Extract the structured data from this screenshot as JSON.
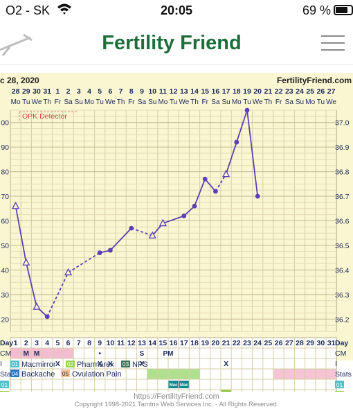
{
  "status_bar": {
    "carrier": "O2 - SK",
    "time": "20:05",
    "battery": "69 %",
    "battery_level": 0.69,
    "wifi_icon": "wifi-icon"
  },
  "app": {
    "title": "Fertility Friend",
    "logo_icon": "arrow-logo-icon",
    "menu_icon": "hamburger-menu-icon"
  },
  "chart_header": {
    "start_date": "c 28, 2020",
    "site": "FertilityFriend.com"
  },
  "chart_data": {
    "type": "line",
    "x": [
      1,
      2,
      3,
      4,
      5,
      6,
      7,
      8,
      9,
      10,
      11,
      12,
      13,
      14,
      15,
      16,
      17,
      18,
      19,
      20,
      21,
      22,
      23,
      24,
      25,
      26,
      27,
      28,
      29,
      30,
      31
    ],
    "dates": [
      "28",
      "29",
      "30",
      "31",
      "1",
      "2",
      "3",
      "4",
      "5",
      "6",
      "7",
      "8",
      "9",
      "10",
      "11",
      "12",
      "13",
      "14",
      "15",
      "16",
      "17",
      "18",
      "19",
      "20",
      "21",
      "22",
      "23",
      "24",
      "25",
      "26",
      "27"
    ],
    "weekdays": [
      "Mo",
      "Tu",
      "We",
      "Th",
      "Fr",
      "Sa",
      "Su",
      "Mo",
      "Tu",
      "We",
      "Th",
      "Fr",
      "Sa",
      "Su",
      "Mo",
      "Tu",
      "We",
      "Th",
      "Fr",
      "Sa",
      "Su",
      "Mo",
      "Tu",
      "We",
      "Th",
      "Fr",
      "Sa",
      "Su",
      "Mo",
      "Tu",
      "We"
    ],
    "left_ticks": [
      "00",
      "90",
      "80",
      "70",
      "60",
      "50",
      "40",
      "30",
      "20"
    ],
    "right_ticks": [
      "37.0",
      "36.9",
      "36.8",
      "36.7",
      "36.6",
      "36.5",
      "36.4",
      "36.3",
      "36.2"
    ],
    "ylim": [
      36.15,
      37.05
    ],
    "series": [
      {
        "values": [
          36.66,
          36.43,
          36.25,
          36.21,
          null,
          36.39,
          null,
          null,
          36.47,
          36.48,
          null,
          36.57,
          null,
          36.54,
          36.59,
          null,
          36.62,
          36.66,
          36.77,
          36.72,
          36.79,
          36.92,
          37.05,
          36.7,
          null,
          null,
          null,
          null,
          null,
          null,
          null
        ],
        "markers": [
          "open-triangle",
          "open-triangle",
          "open-triangle",
          "dot",
          null,
          "open-triangle",
          null,
          null,
          "dot",
          "dot",
          null,
          "dot",
          null,
          "open-triangle",
          "open-triangle",
          null,
          "dot",
          "dot",
          "dot",
          "dot",
          "open-triangle",
          "dot",
          "dot",
          "dot",
          null,
          null,
          null,
          null,
          null,
          null,
          null
        ],
        "color": "#5b3fb4"
      }
    ],
    "dashed_segments": [
      [
        4,
        6
      ],
      [
        6,
        9
      ],
      [
        12,
        14
      ],
      [
        20,
        21
      ]
    ],
    "opk_label": "OPK Detector"
  },
  "chart_rows": {
    "day_label": "Day",
    "cm_label": "CM",
    "i_label": "I",
    "stats_label": "Stats",
    "days": [
      "1",
      "2",
      "3",
      "4",
      "5",
      "6",
      "7",
      "8",
      "9",
      "10",
      "11",
      "12",
      "13",
      "14",
      "15",
      "16",
      "17",
      "18",
      "19",
      "20",
      "21",
      "22",
      "23",
      "24",
      "25",
      "26",
      "27",
      "28",
      "29",
      "30",
      "31"
    ],
    "cm_marks": [
      {
        "day": 2,
        "text": "M"
      },
      {
        "day": 3,
        "text": "M"
      },
      {
        "day": 9,
        "text": "•"
      },
      {
        "day": 13,
        "text": "S"
      },
      {
        "day": 15,
        "text": "PM"
      }
    ],
    "period_days": [
      1,
      2,
      3,
      4,
      5,
      6
    ],
    "i_marks": [
      1,
      5,
      6,
      9,
      10,
      13,
      21
    ],
    "i_symbol": "X",
    "stats_green": [
      14,
      15,
      16,
      17,
      18
    ],
    "stats_pink": [
      26,
      27,
      28,
      29,
      30,
      31
    ],
    "symptom_rows": [
      {
        "code": "01",
        "color": "#4fc0c8",
        "days": [],
        "labels": {
          "16": "Mac",
          "17": "Mac"
        },
        "cell_color": "#118a8e",
        "tagged_days": [
          16,
          17
        ]
      },
      {
        "code": "02",
        "color": "#99d34a",
        "days": [
          21
        ],
        "cell_color": "#86c63c"
      },
      {
        "code": "03",
        "color": "#3f7256",
        "days": [
          1,
          5,
          6,
          9,
          10,
          13,
          19
        ],
        "cell_color": "#487a5c"
      },
      {
        "code": "04",
        "color": "#2a79c4",
        "days": [
          13
        ],
        "cell_color": "#2e74c0"
      },
      {
        "code": "05",
        "color": "#f6c596",
        "days": [
          13
        ],
        "cell_color": "#f8c89c"
      }
    ]
  },
  "legend": [
    {
      "code": "01",
      "label": "Macmirror",
      "color": "#4fc0c8"
    },
    {
      "code": "02",
      "label": "Pharmarex",
      "color": "#99d34a"
    },
    {
      "code": "03",
      "label": "NPS",
      "color": "#3f7256"
    },
    {
      "code": "04",
      "label": "Backache",
      "color": "#2a79c4"
    },
    {
      "code": "05",
      "label": "Ovulation Pain",
      "color": "#f6c596"
    }
  ],
  "footer": {
    "url": "https://FertilityFriend.com",
    "copyright": "Copyright 1998-2021 Tamtris Web Services Inc. - All Rights Reserved."
  }
}
